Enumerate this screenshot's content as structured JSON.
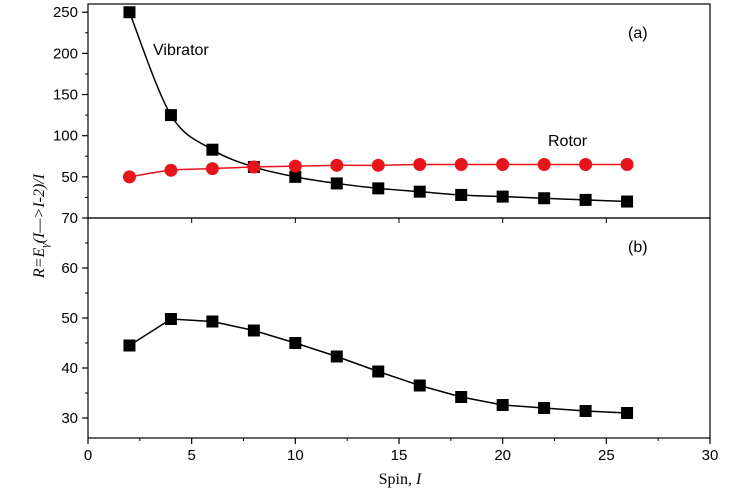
{
  "chart_data": [
    {
      "panel": "(a)",
      "type": "line",
      "x": [
        2,
        4,
        6,
        8,
        10,
        12,
        14,
        16,
        18,
        20,
        22,
        24,
        26
      ],
      "xlim": [
        0,
        30
      ],
      "ylim": [
        0,
        260
      ],
      "yticks": [
        50,
        100,
        150,
        200,
        250
      ],
      "series": [
        {
          "name": "Vibrator",
          "marker": "square",
          "color": "#000000",
          "line_color": "#000000",
          "values": [
            250,
            125,
            83,
            62,
            50,
            42,
            36,
            32,
            28,
            26,
            24,
            22,
            20
          ]
        },
        {
          "name": "Rotor",
          "marker": "circle",
          "color": "#e8141c",
          "line_color": "#e8141c",
          "values": [
            50,
            58,
            60,
            62,
            63,
            64,
            64,
            65,
            65,
            65,
            65,
            65,
            65
          ]
        }
      ],
      "annotations": [
        "(a)",
        "Vibrator",
        "Rotor"
      ]
    },
    {
      "panel": "(b)",
      "type": "line",
      "x": [
        2,
        4,
        6,
        8,
        10,
        12,
        14,
        16,
        18,
        20,
        22,
        24,
        26
      ],
      "xlim": [
        0,
        30
      ],
      "ylim": [
        26,
        70
      ],
      "yticks": [
        30,
        40,
        50,
        60,
        70
      ],
      "series": [
        {
          "name": "",
          "marker": "square",
          "color": "#000000",
          "line_color": "#000000",
          "values": [
            44.5,
            49.8,
            49.3,
            47.5,
            45.0,
            42.3,
            39.3,
            36.5,
            34.2,
            32.6,
            32.0,
            31.4,
            31.0
          ]
        }
      ],
      "annotations": [
        "(b)"
      ]
    }
  ],
  "shared": {
    "xticks": [
      0,
      5,
      10,
      15,
      20,
      25,
      30
    ],
    "xlabel_prefix": "Spin,",
    "xlabel_var": "I",
    "ylabel_start": "R",
    "ylabel_middle": "=E",
    "ylabel_sub": "γ",
    "ylabel_end": "(I—>I-2)/I"
  }
}
